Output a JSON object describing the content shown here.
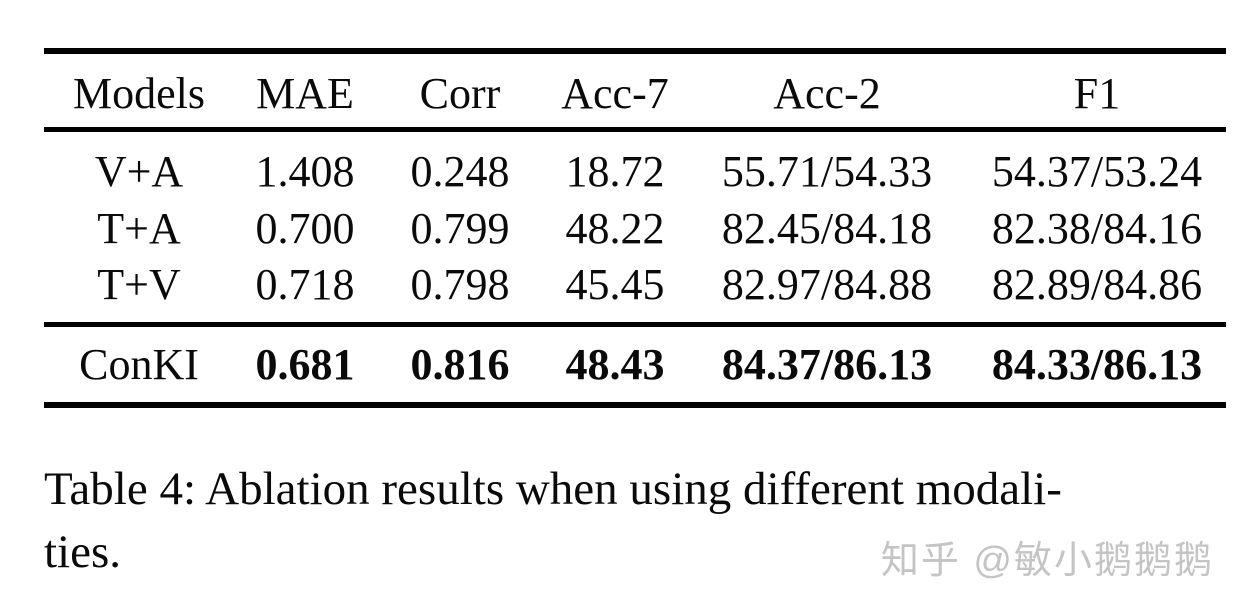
{
  "page": {
    "background": "#ffffff",
    "text_color": "#0a0a0a",
    "rule_color": "#000000"
  },
  "table": {
    "header": [
      "Models",
      "MAE",
      "Corr",
      "Acc-7",
      "Acc-2",
      "F1"
    ],
    "rows": [
      {
        "cells": [
          "V+A",
          "1.408",
          "0.248",
          "18.72",
          "55.71/54.33",
          "54.37/53.24"
        ]
      },
      {
        "cells": [
          "T+A",
          "0.700",
          "0.799",
          "48.22",
          "82.45/84.18",
          "82.38/84.16"
        ]
      },
      {
        "cells": [
          "T+V",
          "0.718",
          "0.798",
          "45.45",
          "82.97/84.88",
          "82.89/84.86"
        ]
      }
    ],
    "summary_row": {
      "cells": [
        "ConKI",
        "0.681",
        "0.816",
        "48.43",
        "84.37/86.13",
        "84.33/86.13"
      ],
      "values_bold": true
    }
  },
  "caption": {
    "line1": "Table 4: Ablation results when using different modali-",
    "line2": "ties."
  },
  "watermark": {
    "text": "知乎 @敏小鹅鹅鹅",
    "color": "#c4c4c4"
  },
  "chart_data": {
    "type": "table",
    "title": "Table 4: Ablation results when using different modalities.",
    "columns": [
      "Models",
      "MAE",
      "Corr",
      "Acc-7",
      "Acc-2",
      "F1"
    ],
    "rows": [
      [
        "V+A",
        "1.408",
        "0.248",
        "18.72",
        "55.71/54.33",
        "54.37/53.24"
      ],
      [
        "T+A",
        "0.700",
        "0.799",
        "48.22",
        "82.45/84.18",
        "82.38/84.16"
      ],
      [
        "T+V",
        "0.718",
        "0.798",
        "45.45",
        "82.97/84.88",
        "82.89/84.86"
      ],
      [
        "ConKI",
        "0.681",
        "0.816",
        "48.43",
        "84.37/86.13",
        "84.33/86.13"
      ]
    ],
    "bold_row": "ConKI"
  }
}
